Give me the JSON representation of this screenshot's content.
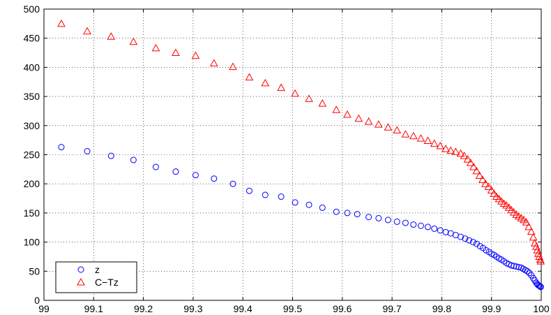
{
  "chart_data": {
    "type": "scatter",
    "xlim": [
      99,
      100
    ],
    "ylim": [
      0,
      500
    ],
    "x_ticks": [
      "99",
      "99.1",
      "99.2",
      "99.3",
      "99.4",
      "99.5",
      "99.6",
      "99.7",
      "99.8",
      "99.9",
      "100"
    ],
    "y_ticks": [
      "0",
      "50",
      "100",
      "150",
      "200",
      "250",
      "300",
      "350",
      "400",
      "450",
      "500"
    ],
    "grid": true,
    "legend_position": "bottom-left",
    "series": [
      {
        "name": "z",
        "marker": "circle",
        "color": "#0000ff",
        "x": [
          99.035,
          99.087,
          99.135,
          99.18,
          99.225,
          99.265,
          99.305,
          99.342,
          99.38,
          99.413,
          99.445,
          99.477,
          99.505,
          99.533,
          99.56,
          99.588,
          99.61,
          99.63,
          99.653,
          99.673,
          99.692,
          99.71,
          99.727,
          99.743,
          99.758,
          99.772,
          99.785,
          99.797,
          99.808,
          99.818,
          99.828,
          99.838,
          99.847,
          99.855,
          99.863,
          99.87,
          99.877,
          99.883,
          99.889,
          99.895,
          99.9,
          99.905,
          99.91,
          99.915,
          99.92,
          99.925,
          99.93,
          99.935,
          99.94,
          99.945,
          99.95,
          99.955,
          99.96,
          99.964,
          99.968,
          99.972,
          99.976,
          99.98,
          99.984,
          99.987,
          99.99,
          99.992,
          99.994,
          99.996,
          99.998,
          99.999
        ],
        "y": [
          263,
          256,
          248,
          241,
          229,
          221,
          215,
          209,
          200,
          188,
          181,
          178,
          168,
          164,
          159,
          152,
          150,
          148,
          143,
          141,
          138,
          135,
          133,
          130,
          128,
          126,
          123,
          120,
          117,
          115,
          112,
          109,
          106,
          103,
          100,
          97,
          93,
          90,
          86,
          83,
          80,
          78,
          75,
          72,
          70,
          67,
          64,
          62,
          60,
          59,
          58,
          57,
          56,
          54,
          52,
          50,
          47,
          43,
          38,
          34,
          30,
          28,
          26,
          25,
          24,
          23
        ]
      },
      {
        "name": "C−Tz",
        "marker": "triangle",
        "color": "#ff0000",
        "x": [
          99.035,
          99.087,
          99.135,
          99.18,
          99.225,
          99.265,
          99.305,
          99.342,
          99.38,
          99.413,
          99.445,
          99.477,
          99.505,
          99.533,
          99.56,
          99.588,
          99.61,
          99.633,
          99.653,
          99.673,
          99.692,
          99.71,
          99.727,
          99.743,
          99.758,
          99.772,
          99.785,
          99.797,
          99.808,
          99.818,
          99.828,
          99.838,
          99.845,
          99.852,
          99.858,
          99.864,
          99.87,
          99.876,
          99.882,
          99.888,
          99.894,
          99.9,
          99.905,
          99.91,
          99.915,
          99.92,
          99.925,
          99.93,
          99.935,
          99.94,
          99.945,
          99.95,
          99.955,
          99.96,
          99.965,
          99.97,
          99.975,
          99.98,
          99.984,
          99.987,
          99.99,
          99.992,
          99.994,
          99.996,
          99.998,
          99.999
        ],
        "y": [
          475,
          462,
          453,
          444,
          433,
          425,
          420,
          407,
          401,
          383,
          373,
          365,
          355,
          346,
          338,
          327,
          319,
          312,
          307,
          302,
          297,
          292,
          285,
          282,
          278,
          274,
          269,
          265,
          260,
          257,
          255,
          252,
          248,
          242,
          236,
          229,
          222,
          214,
          207,
          200,
          195,
          189,
          183,
          178,
          174,
          170,
          166,
          163,
          159,
          155,
          151,
          147,
          144,
          141,
          138,
          134,
          126,
          118,
          108,
          98,
          92,
          86,
          80,
          75,
          70,
          67
        ]
      }
    ]
  }
}
